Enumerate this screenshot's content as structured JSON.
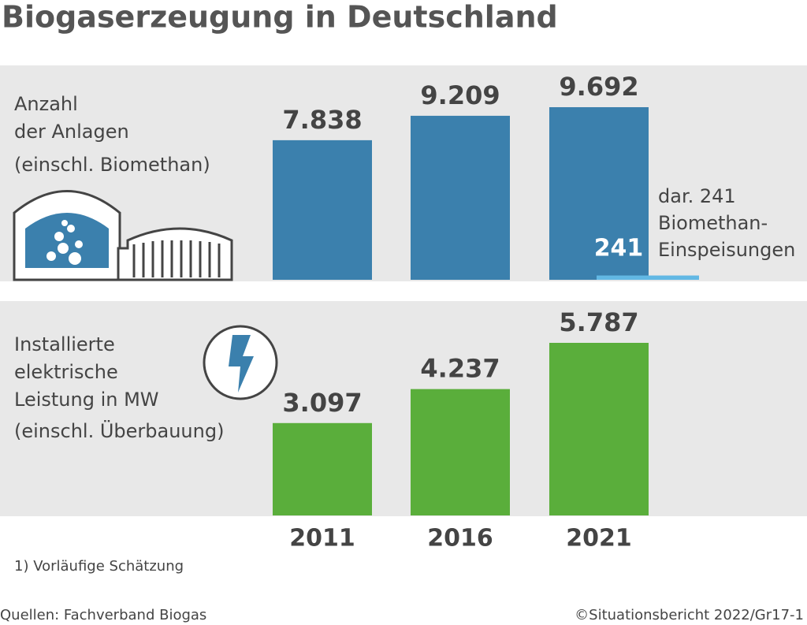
{
  "title": "Biogaserzeugung in Deutschland",
  "footnote": "1) Vorläufige Schätzung",
  "source": "Quellen: Fachverband Biogas",
  "copyright": "©Situationsbericht 2022/Gr17-1",
  "chart_data": [
    {
      "type": "bar",
      "label_lines": [
        "Anzahl",
        "der Anlagen"
      ],
      "subtitle": "(einschl. Biomethan)",
      "series": [
        {
          "color": "#3b80ad",
          "values": [
            7838,
            9209,
            9692
          ],
          "value_labels": [
            "7.838",
            "9.209",
            "9.692"
          ]
        },
        {
          "color": "#62b8e4",
          "values": [
            null,
            null,
            241
          ]
        }
      ],
      "annotation_lines": [
        "dar. 241",
        "Biomethan-",
        "Einspeisungen"
      ]
    },
    {
      "type": "bar",
      "label_lines": [
        "Installierte",
        "elektrische",
        "Leistung in MW"
      ],
      "subtitle": "(einschl. Überbauung)",
      "categories": [
        "2011",
        "2016",
        "2021"
      ],
      "series": [
        {
          "color": "#5aae3b",
          "values": [
            3097,
            4237,
            5787
          ],
          "value_labels": [
            "3.097",
            "4.237",
            "5.787"
          ]
        }
      ]
    }
  ]
}
